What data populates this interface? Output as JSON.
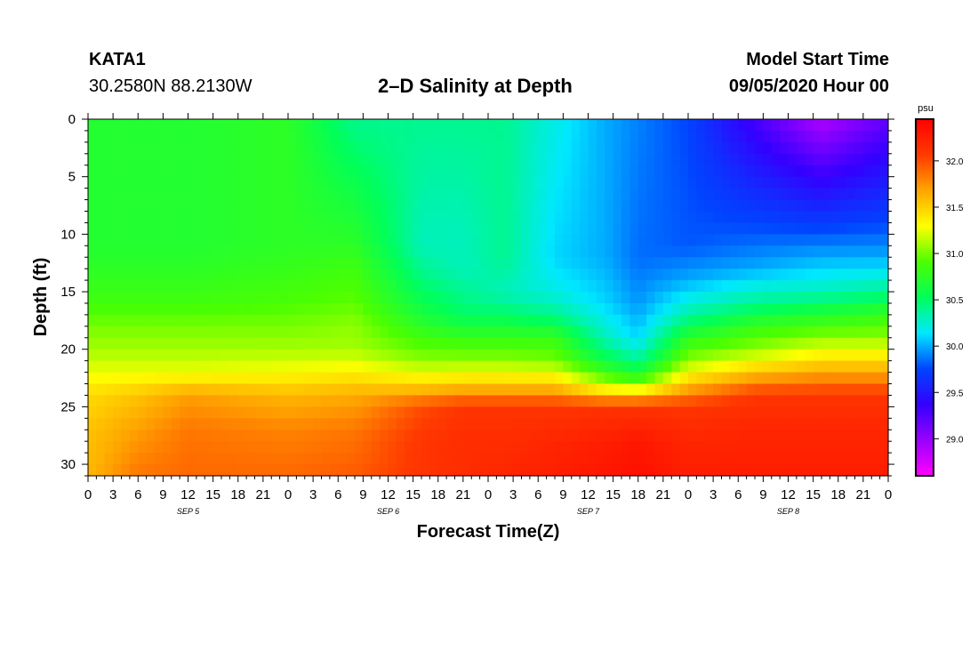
{
  "header": {
    "station": "KATA1",
    "coordinates": "30.2580N 88.2130W",
    "title": "2–D Salinity at Depth",
    "model_start_label": "Model Start Time",
    "model_start_value": "09/05/2020 Hour 00"
  },
  "chart_data": {
    "type": "heatmap",
    "title": "2–D Salinity at Depth",
    "xlabel": "Forecast Time(Z)",
    "ylabel": "Depth (ft)",
    "x_hours": [
      0,
      96
    ],
    "xticks": [
      "0",
      "3",
      "6",
      "9",
      "12",
      "15",
      "18",
      "21",
      "0",
      "3",
      "6",
      "9",
      "12",
      "15",
      "18",
      "21",
      "0",
      "3",
      "6",
      "9",
      "12",
      "15",
      "18",
      "21",
      "0",
      "3",
      "6",
      "9",
      "12",
      "15",
      "18",
      "21",
      "0"
    ],
    "date_labels": [
      {
        "hour": 12,
        "label": "SEP 5"
      },
      {
        "hour": 36,
        "label": "SEP 6"
      },
      {
        "hour": 60,
        "label": "SEP 7"
      },
      {
        "hour": 84,
        "label": "SEP 8"
      }
    ],
    "ylim": [
      0,
      31
    ],
    "yticks": [
      0,
      5,
      10,
      15,
      20,
      25,
      30
    ],
    "y_reversed": true,
    "colorbar": {
      "unit": "psu",
      "range": [
        28.6,
        32.45
      ],
      "ticks": [
        29.0,
        29.5,
        30.0,
        30.5,
        31.0,
        31.5,
        32.0
      ],
      "tick_labels": [
        "29.0",
        "29.5",
        "30.0",
        "30.5",
        "31.0",
        "31.5",
        "32.0"
      ],
      "colors": [
        "#ff00ff",
        "#9a00ff",
        "#3300ff",
        "#0044ff",
        "#00e8ff",
        "#00ff5a",
        "#4cff00",
        "#ffff00",
        "#ffa500",
        "#ff3a00",
        "#ff0000"
      ]
    },
    "salinity_profiles": [
      {
        "hour": 0,
        "depths": [
          0,
          11,
          13,
          16,
          18,
          20,
          22,
          24,
          27,
          31
        ],
        "values": [
          30.7,
          30.7,
          30.75,
          30.85,
          31.0,
          31.1,
          31.25,
          31.45,
          31.55,
          31.6
        ]
      },
      {
        "hour": 6,
        "depths": [
          0,
          11,
          13,
          16,
          18,
          20,
          22,
          24,
          27,
          31
        ],
        "values": [
          30.7,
          30.7,
          30.75,
          30.85,
          31.0,
          31.1,
          31.25,
          31.55,
          31.7,
          31.85
        ]
      },
      {
        "hour": 12,
        "depths": [
          0,
          11,
          13,
          16,
          18,
          20,
          22,
          24,
          27,
          31
        ],
        "values": [
          30.7,
          30.7,
          30.75,
          30.85,
          31.0,
          31.1,
          31.25,
          31.7,
          31.85,
          31.9
        ]
      },
      {
        "hour": 24,
        "depths": [
          0,
          11,
          13,
          16,
          18,
          20,
          22,
          24,
          27,
          31
        ],
        "values": [
          30.75,
          30.75,
          30.8,
          30.9,
          31.0,
          31.1,
          31.3,
          31.6,
          31.8,
          31.9
        ]
      },
      {
        "hour": 32,
        "depths": [
          0,
          11,
          13,
          16,
          18,
          20,
          22,
          24,
          27,
          31
        ],
        "values": [
          30.4,
          30.75,
          30.85,
          30.95,
          31.05,
          31.1,
          31.35,
          31.65,
          31.85,
          31.95
        ]
      },
      {
        "hour": 40,
        "depths": [
          0,
          11,
          14,
          17,
          19,
          21,
          23,
          25,
          28,
          31
        ],
        "values": [
          30.4,
          30.3,
          30.45,
          30.65,
          30.85,
          31.05,
          31.45,
          32.0,
          32.1,
          32.1
        ]
      },
      {
        "hour": 45,
        "depths": [
          0,
          10,
          13,
          17,
          19,
          21,
          23,
          25,
          28,
          31
        ],
        "values": [
          30.4,
          30.3,
          30.3,
          30.5,
          30.8,
          31.05,
          31.5,
          32.1,
          32.15,
          32.15
        ]
      },
      {
        "hour": 50,
        "depths": [
          0,
          12,
          15,
          17,
          19,
          21,
          23,
          25,
          28,
          31
        ],
        "values": [
          30.4,
          30.4,
          30.3,
          30.5,
          30.8,
          31.05,
          31.5,
          32.1,
          32.15,
          32.2
        ]
      },
      {
        "hour": 56,
        "depths": [
          0,
          12,
          15,
          17,
          19,
          21,
          23,
          25,
          28,
          31
        ],
        "values": [
          30.2,
          30.1,
          30.2,
          30.4,
          30.8,
          31.0,
          31.5,
          32.1,
          32.2,
          32.25
        ]
      },
      {
        "hour": 62,
        "depths": [
          0,
          12,
          16,
          19,
          21,
          23,
          24,
          25,
          28,
          31
        ],
        "values": [
          30.0,
          30.0,
          30.1,
          30.3,
          30.6,
          31.1,
          31.6,
          32.1,
          32.25,
          32.3
        ]
      },
      {
        "hour": 66,
        "depths": [
          0,
          12,
          16,
          19,
          21,
          23,
          24,
          25,
          28,
          31
        ],
        "values": [
          29.9,
          29.85,
          29.95,
          30.1,
          30.4,
          30.95,
          31.6,
          32.1,
          32.3,
          32.35
        ]
      },
      {
        "hour": 72,
        "depths": [
          0,
          11,
          14,
          17,
          19,
          21,
          23,
          25,
          28,
          31
        ],
        "values": [
          29.75,
          29.8,
          30.0,
          30.35,
          30.75,
          31.05,
          31.55,
          32.1,
          32.2,
          32.25
        ]
      },
      {
        "hour": 80,
        "depths": [
          0,
          10,
          13,
          16,
          18,
          20,
          22,
          24,
          27,
          31
        ],
        "values": [
          29.3,
          29.8,
          30.0,
          30.4,
          30.8,
          31.05,
          31.55,
          32.1,
          32.2,
          32.25
        ]
      },
      {
        "hour": 88,
        "depths": [
          0,
          9,
          12,
          15,
          17,
          19,
          21,
          24,
          27,
          31
        ],
        "values": [
          28.9,
          29.7,
          30.0,
          30.3,
          30.7,
          31.05,
          31.45,
          32.1,
          32.2,
          32.25
        ]
      },
      {
        "hour": 96,
        "depths": [
          0,
          9,
          12,
          15,
          17,
          19,
          21,
          24,
          27,
          31
        ],
        "values": [
          29.2,
          29.75,
          30.0,
          30.4,
          30.8,
          31.05,
          31.45,
          32.1,
          32.2,
          32.25
        ]
      }
    ]
  }
}
